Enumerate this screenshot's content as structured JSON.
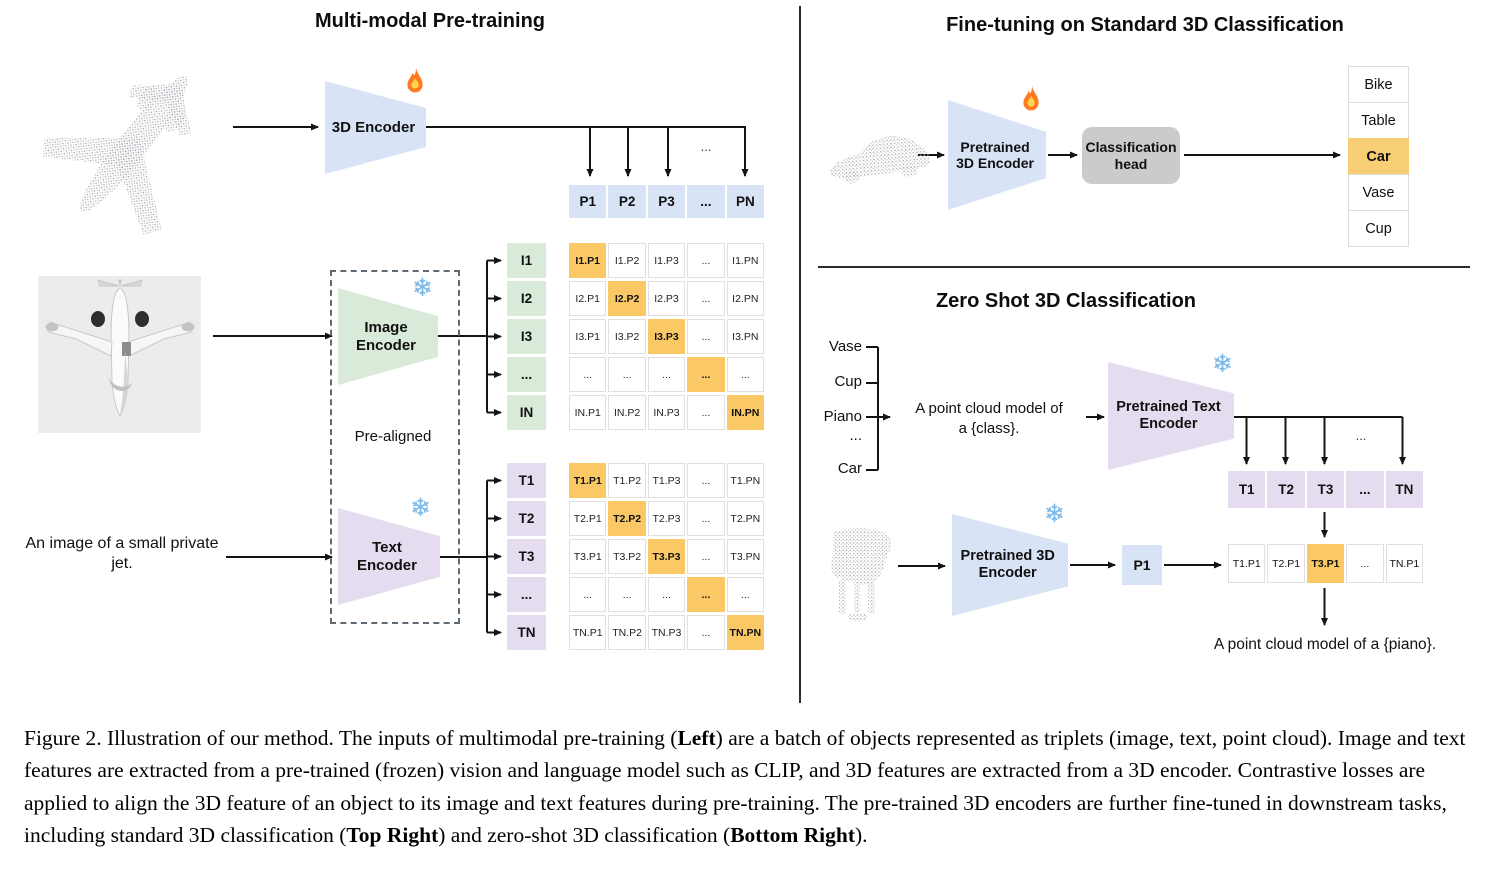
{
  "figure": {
    "left": {
      "title": "Multi-modal Pre-training",
      "encoder_3d": "3D Encoder",
      "image_encoder": "Image Encoder",
      "text_encoder": "Text Encoder",
      "pre_aligned": "Pre-aligned",
      "image_caption": "An image of a small private jet.",
      "p_row": [
        "P1",
        "P2",
        "P3",
        "...",
        "PN"
      ],
      "i_labels": [
        "I1",
        "I2",
        "I3",
        "...",
        "IN"
      ],
      "t_labels": [
        "T1",
        "T2",
        "T3",
        "...",
        "TN"
      ],
      "i_matrix": [
        [
          "I1.P1",
          "I1.P2",
          "I1.P3",
          "...",
          "I1.PN"
        ],
        [
          "I2.P1",
          "I2.P2",
          "I2.P3",
          "...",
          "I2.PN"
        ],
        [
          "I3.P1",
          "I3.P2",
          "I3.P3",
          "...",
          "I3.PN"
        ],
        [
          "...",
          "...",
          "...",
          "...",
          "..."
        ],
        [
          "IN.P1",
          "IN.P2",
          "IN.P3",
          "...",
          "IN.PN"
        ]
      ],
      "t_matrix": [
        [
          "T1.P1",
          "T1.P2",
          "T1.P3",
          "...",
          "T1.PN"
        ],
        [
          "T2.P1",
          "T2.P2",
          "T2.P3",
          "...",
          "T2.PN"
        ],
        [
          "T3.P1",
          "T3.P2",
          "T3.P3",
          "...",
          "T3.PN"
        ],
        [
          "...",
          "...",
          "...",
          "...",
          "..."
        ],
        [
          "TN.P1",
          "TN.P2",
          "TN.P3",
          "...",
          "TN.PN"
        ]
      ]
    },
    "top_right": {
      "title": "Fine-tuning on Standard 3D Classification",
      "encoder": "Pretrained 3D Encoder",
      "head": "Classification head",
      "classes": [
        "Bike",
        "Table",
        "Car",
        "Vase",
        "Cup"
      ],
      "highlighted_class": "Car"
    },
    "bottom_right": {
      "title": "Zero Shot 3D Classification",
      "class_prompts": [
        "Vase",
        "Cup",
        "Piano",
        "...",
        "Car"
      ],
      "prompt_line1": "A point cloud model of",
      "prompt_line2": "a {class}.",
      "text_encoder": "Pretrained Text Encoder",
      "encoder_3d": "Pretrained 3D Encoder",
      "p1": "P1",
      "t_row": [
        "T1",
        "T2",
        "T3",
        "...",
        "TN"
      ],
      "result_row": [
        "T1.P1",
        "T2.P1",
        "T3.P1",
        "...",
        "TN.P1"
      ],
      "highlighted_result": "T3.P1",
      "result_prompt": "A point cloud model of a {piano}."
    },
    "misc": {
      "ellipsis": "...",
      "snowflake_glyph": "❄"
    },
    "icons": {
      "trainable": "fire-icon",
      "frozen": "snowflake-icon"
    },
    "colors": {
      "encoder_blue": "#D8E3F5",
      "encoder_green": "#D9EAD8",
      "encoder_purple": "#E6DCEF",
      "highlight_orange": "#FAC966",
      "list_highlight": "#F8CE74",
      "head_gray": "#CBCBCB"
    }
  },
  "caption": {
    "parts": [
      {
        "text": "Figure 2. Illustration of our method. The inputs of multimodal pre-training (",
        "bold": false
      },
      {
        "text": "Left",
        "bold": true
      },
      {
        "text": ") are a batch of objects represented as triplets (image, text, point cloud). Image and text features are extracted from a pre-trained (frozen) vision and language model such as CLIP, and 3D features are extracted from a 3D encoder. Contrastive losses are applied to align the 3D feature of an object to its image and text features during pre-training. The pre-trained 3D encoders are further fine-tuned in downstream tasks, including standard 3D classification (",
        "bold": false
      },
      {
        "text": "Top Right",
        "bold": true
      },
      {
        "text": ") and zero-shot 3D classification (",
        "bold": false
      },
      {
        "text": "Bottom Right",
        "bold": true
      },
      {
        "text": ").",
        "bold": false
      }
    ]
  }
}
